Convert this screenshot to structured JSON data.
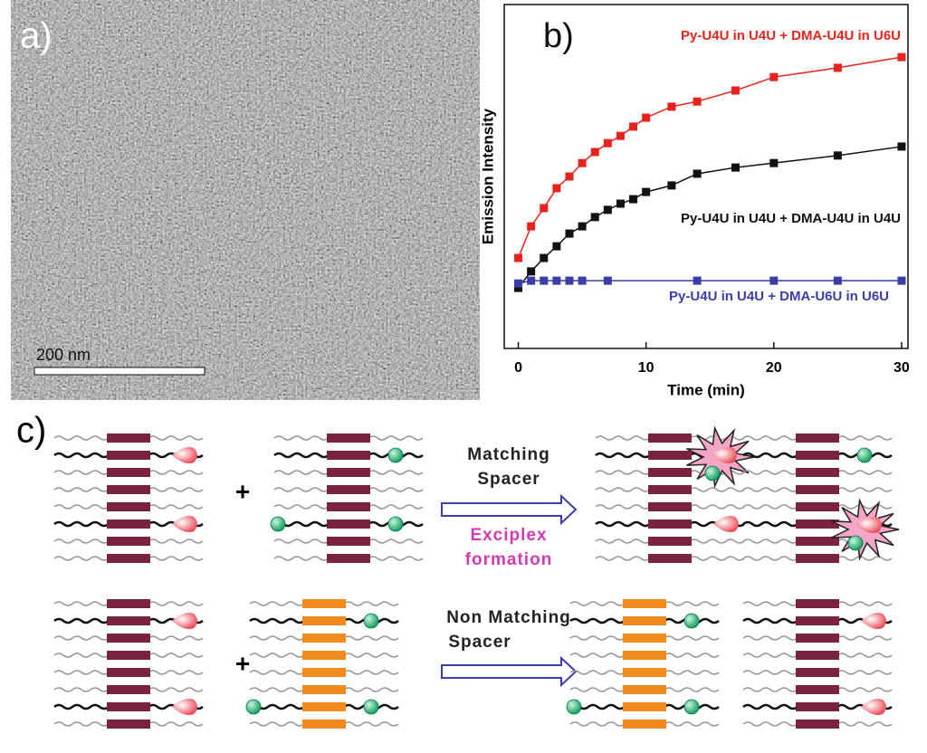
{
  "panel_a": {
    "label": "a)",
    "scale_bar": "200 nm"
  },
  "chart_data": {
    "type": "line",
    "label": "b)",
    "x_label": "Time (min)",
    "y_label": "Emission Intensity",
    "xlim": [
      -1.1,
      30.5
    ],
    "xticks": [
      0,
      10,
      20,
      30
    ],
    "ylim": [
      0,
      100
    ],
    "series": [
      {
        "name": "Py-U4U in U4U + DMA-U4U in U6U",
        "color": "#e8231e",
        "x": [
          0,
          1,
          2,
          3,
          4,
          5,
          6,
          7,
          8,
          9,
          10,
          12,
          14,
          17,
          20,
          25,
          30
        ],
        "values": [
          26.3,
          35.5,
          40.8,
          46.6,
          50,
          53.9,
          57.1,
          59.7,
          61.8,
          64.5,
          67.1,
          70.3,
          71.8,
          75,
          78.9,
          81.6,
          84.7
        ]
      },
      {
        "name": "Py-U4U in U4U + DMA-U4U in U4U",
        "color": "#111111",
        "x": [
          0,
          1,
          2,
          3,
          4,
          5,
          6,
          7,
          8,
          9,
          10,
          12,
          14,
          17,
          20,
          25,
          30
        ],
        "values": [
          17.6,
          22.4,
          26.3,
          29.7,
          33.4,
          35.5,
          38.2,
          40.3,
          42.1,
          43.4,
          45.5,
          47.4,
          50.8,
          52.6,
          53.9,
          56.1,
          58.7
        ]
      },
      {
        "name": "Py-U4U in U4U + DMA-U6U in U6U",
        "color": "#3a3ea8",
        "x": [
          0,
          1,
          2,
          3,
          4,
          5,
          7,
          14,
          20,
          25,
          30
        ],
        "values": [
          18.9,
          19.7,
          19.7,
          19.7,
          19.7,
          19.7,
          19.7,
          19.7,
          19.7,
          19.7,
          19.7
        ]
      }
    ]
  },
  "panel_c": {
    "label": "c)",
    "plus": [
      "+",
      "+"
    ],
    "matching": [
      "Matching",
      "Spacer"
    ],
    "exciplex": [
      "Exciplex",
      "formation"
    ],
    "non_matching": [
      "Non Matching",
      "Spacer"
    ]
  }
}
